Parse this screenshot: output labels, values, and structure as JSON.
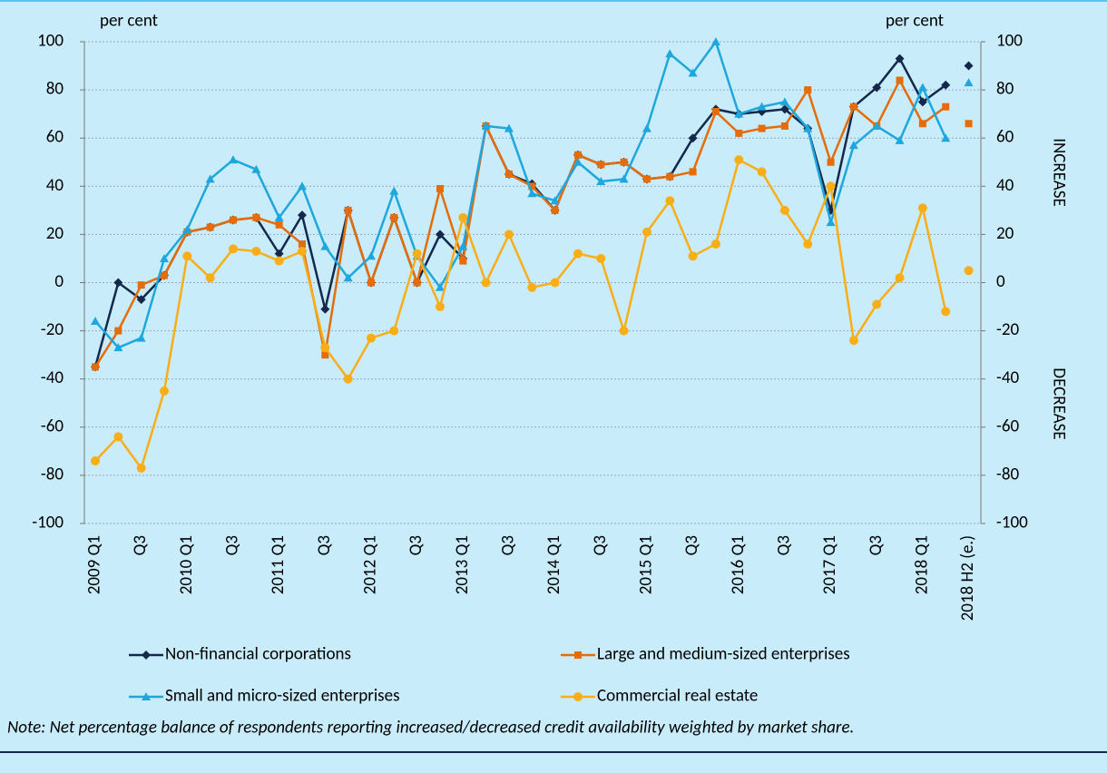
{
  "chart_data": {
    "type": "line",
    "y_label": "per cent",
    "y2_label": "per cent",
    "annotations": [
      "INCREASE",
      "DECREASE"
    ],
    "note": "Note: Net percentage balance of respondents reporting increased/decreased credit availability weighted by market share.",
    "categories": [
      "2009 Q1",
      null,
      "Q3",
      null,
      "2010 Q1",
      null,
      "Q3",
      null,
      "2011 Q1",
      null,
      "Q3",
      null,
      "2012 Q1",
      null,
      "Q3",
      null,
      "2013 Q1",
      null,
      "Q3",
      null,
      "2014 Q1",
      null,
      "Q3",
      null,
      "2015 Q1",
      null,
      "Q3",
      null,
      "2016 Q1",
      null,
      "Q3",
      null,
      "2017 Q1",
      null,
      "Q3",
      null,
      "2018 Q1",
      null
    ],
    "estimate_category": "2018 H2 (e.)",
    "series": [
      {
        "name": "Non-financial corporations",
        "color": "#14284b",
        "marker": "diamond",
        "values": [
          -35,
          0,
          -7,
          3,
          21,
          23,
          26,
          27,
          12,
          28,
          -11,
          30,
          0,
          27,
          0,
          20,
          10,
          65,
          45,
          41,
          30,
          53,
          49,
          50,
          43,
          44,
          60,
          72,
          70,
          71,
          72,
          64,
          30,
          73,
          81,
          93,
          75,
          82
        ],
        "estimate": 90
      },
      {
        "name": "Large and medium-sized enterprises",
        "color": "#e46c0a",
        "marker": "square",
        "values": [
          -35,
          -20,
          -1,
          3,
          21,
          23,
          26,
          27,
          24,
          16,
          -30,
          30,
          0,
          27,
          0,
          39,
          9,
          65,
          45,
          40,
          30,
          53,
          49,
          50,
          43,
          44,
          46,
          71,
          62,
          64,
          65,
          80,
          50,
          73,
          65,
          84,
          66,
          73
        ],
        "estimate": 66
      },
      {
        "name": "Small and micro-sized enterprises",
        "color": "#1ea7dd",
        "marker": "triangle",
        "values": [
          -16,
          -27,
          -23,
          10,
          22,
          43,
          51,
          47,
          27,
          40,
          15,
          2,
          11,
          38,
          11,
          -2,
          15,
          65,
          64,
          37,
          34,
          50,
          42,
          43,
          64,
          95,
          87,
          100,
          70,
          73,
          75,
          64,
          25,
          57,
          65,
          59,
          81,
          60
        ],
        "estimate": 83
      },
      {
        "name": "Commercial real estate",
        "color": "#f9ae18",
        "marker": "circle",
        "values": [
          -74,
          -64,
          -77,
          -45,
          11,
          2,
          14,
          13,
          9,
          13,
          -27,
          -40,
          -23,
          -20,
          12,
          -10,
          27,
          0,
          20,
          -2,
          0,
          12,
          10,
          -20,
          21,
          34,
          11,
          16,
          51,
          46,
          30,
          16,
          40,
          -24,
          -9,
          2,
          31,
          -12
        ],
        "estimate": 5
      }
    ],
    "ylim": [
      -100,
      100
    ],
    "yticks": [
      -100,
      -80,
      -60,
      -40,
      -20,
      0,
      20,
      40,
      60,
      80,
      100
    ],
    "y2lim": [
      -100,
      100
    ],
    "y2ticks": [
      -100,
      -80,
      -60,
      -40,
      -20,
      0,
      20,
      40,
      60,
      80,
      100
    ],
    "grid": true
  }
}
